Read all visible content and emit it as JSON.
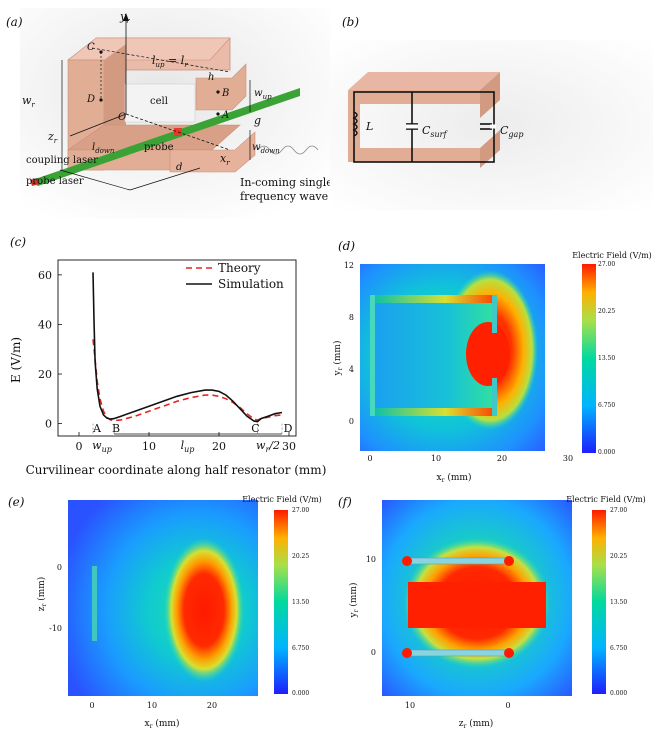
{
  "panels": {
    "a": {
      "label": "(a)",
      "labels": {
        "y_axis": "y",
        "y_axis_sub": "r",
        "z_axis": "z",
        "z_axis_sub": "r",
        "x_axis": "x",
        "x_axis_sub": "r",
        "origin": "O",
        "C": "C",
        "D": "D",
        "B": "B",
        "A": "A",
        "l_up_eq": "l",
        "l_up_sub": "up",
        "l_up_rhs": " = l",
        "l_up_rhs_sub": "r",
        "h": "h",
        "w_r": "w",
        "w_r_sub": "r",
        "w_up": "w",
        "w_up_sub": "up",
        "g": "g",
        "w_down": "w",
        "w_down_sub": "down",
        "l_down": "l",
        "l_down_sub": "down",
        "d": "d",
        "cell": "cell",
        "probe": "probe",
        "coupling_laser": "coupling laser",
        "probe_laser": "probe laser",
        "wave_line1": "In-coming single",
        "wave_line2": "frequency wave"
      }
    },
    "b": {
      "label": "(b)",
      "labels": {
        "L": "L",
        "C_surf": "C",
        "C_surf_sub": "surf",
        "C_gap": "C",
        "C_gap_sub": "gap"
      }
    },
    "c": {
      "label": "(c)",
      "chart_data": {
        "type": "line",
        "xlabel": "Curvilinear coordinate along half resonator (mm)",
        "ylabel": "E (V/m)",
        "xlim": [
          -3,
          31
        ],
        "ylim": [
          -5,
          66
        ],
        "xticks": [
          0,
          10,
          20,
          30
        ],
        "yticks": [
          0,
          20,
          40,
          60
        ],
        "legend_position": "top-right",
        "series": [
          {
            "name": "Theory",
            "style": "dashed",
            "color": "#e3261e",
            "x": [
              2.0,
              2.3,
              2.6,
              3.0,
              3.5,
              4.0,
              4.5,
              5.0,
              6,
              8,
              10,
              12,
              14,
              16,
              18,
              19,
              20,
              21,
              22,
              23,
              24,
              25,
              25.5,
              26,
              27,
              28,
              29
            ],
            "y": [
              34,
              26,
              17,
              10,
              5,
              2.5,
              1.5,
              1.2,
              1.5,
              3,
              5,
              7,
              9,
              10.5,
              11.5,
              11.5,
              11,
              10,
              8.5,
              6.5,
              4,
              1.8,
              1.4,
              2.0,
              2.6,
              3.2,
              3.5
            ]
          },
          {
            "name": "Simulation",
            "style": "solid",
            "color": "#111111",
            "x": [
              2.0,
              2.15,
              2.3,
              2.6,
              3.0,
              3.5,
              4.0,
              4.5,
              5.0,
              6,
              8,
              10,
              12,
              14,
              16,
              18,
              19,
              20,
              21,
              22,
              23,
              24,
              25,
              25.5,
              26,
              27,
              28,
              29
            ],
            "y": [
              61,
              40,
              25,
              14,
              7,
              3.5,
              2.2,
              1.8,
              2.0,
              3,
              5,
              7,
              9,
              11,
              12.5,
              13.5,
              13.5,
              13,
              11.5,
              9,
              6,
              3,
              1.0,
              0.8,
              2.0,
              3.0,
              4.0,
              4.5
            ]
          }
        ],
        "annotations": {
          "A": "A",
          "B": "B",
          "C": "C",
          "D": "D",
          "w_up": "w",
          "w_up_sub": "up",
          "l_up": "l",
          "l_up_sub": "up",
          "w_r_half": "w",
          "w_r_half_sub": "r",
          "w_r_half_tail": "/2",
          "annotation_x": {
            "A": 2.0,
            "B": 5.0,
            "C": 25.5,
            "D": 29.0,
            "w_up": 3.0,
            "l_up": 15.5,
            "w_r_half": 27.0
          }
        }
      }
    },
    "d": {
      "label": "(d)",
      "colorbar_title": "Electric Field (V/m)",
      "colorbar_ticks": [
        "27.00",
        "20.25",
        "13.50",
        "6.750",
        "0.000"
      ],
      "xlabel": "x",
      "xlabel_sub": "r",
      "xlabel_unit": " (mm)",
      "ylabel": "y",
      "ylabel_sub": "r",
      "ylabel_unit": " (mm)",
      "xticks": [
        "0",
        "10",
        "20",
        "30"
      ],
      "yticks": [
        "12",
        "8",
        "4",
        "0"
      ]
    },
    "e": {
      "label": "(e)",
      "colorbar_title": "Electric Field (V/m)",
      "colorbar_ticks": [
        "27.00",
        "20.25",
        "13.50",
        "6.750",
        "0.000"
      ],
      "xlabel": "x",
      "xlabel_sub": "r",
      "xlabel_unit": " (mm)",
      "ylabel": "z",
      "ylabel_sub": "r",
      "ylabel_unit": " (mm)",
      "xticks": [
        "0",
        "10",
        "20"
      ],
      "yticks": [
        "0",
        "-10"
      ]
    },
    "f": {
      "label": "(f)",
      "colorbar_title": "Electric Field (V/m)",
      "colorbar_ticks": [
        "27.00",
        "20.25",
        "13.50",
        "6.750",
        "0.000"
      ],
      "xlabel": "z",
      "xlabel_sub": "r",
      "xlabel_unit": " (mm)",
      "ylabel": "y",
      "ylabel_sub": "r",
      "ylabel_unit": " (mm)",
      "xticks": [
        "10",
        "0"
      ],
      "yticks": [
        "10",
        "0"
      ]
    }
  },
  "colors": {
    "copper": "#e2ad95",
    "copper_dark": "#c98f77",
    "green_rod": "#3ba335",
    "theory": "#e3261e",
    "field_low": "#1e3cff",
    "field_mid": "#00c8b4",
    "field_high": "#ff1a00"
  }
}
